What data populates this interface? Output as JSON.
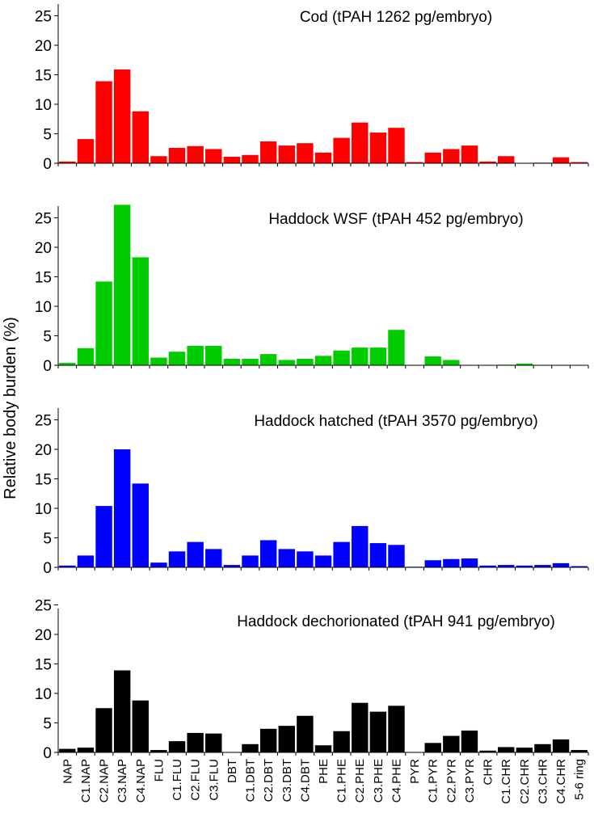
{
  "chart_data": {
    "type": "bar",
    "ylabel": "Relative body burden (%)",
    "ylim": [
      0,
      27
    ],
    "yticks": [
      "0",
      "5",
      "10",
      "15",
      "20",
      "25"
    ],
    "categories": [
      "NAP",
      "C1.NAP",
      "C2.NAP",
      "C3.NAP",
      "C4.NAP",
      "FLU",
      "C1.FLU",
      "C2.FLU",
      "C3.FLU",
      "DBT",
      "C1.DBT",
      "C2.DBT",
      "C3.DBT",
      "C4.DBT",
      "PHE",
      "C1.PHE",
      "C2.PHE",
      "C3.PHE",
      "C4.PHE",
      "PYR",
      "C1.PYR",
      "C2.PYR",
      "C3.PYR",
      "CHR",
      "C1.CHR",
      "C2.CHR",
      "C3.CHR",
      "C4.CHR",
      "5-6 ring"
    ],
    "panels": [
      {
        "title": "Cod (tPAH 1262 pg/embryo)",
        "color": "#ff0000",
        "values": [
          0.3,
          4.1,
          13.9,
          15.9,
          8.8,
          1.2,
          2.6,
          2.9,
          2.4,
          1.1,
          1.4,
          3.7,
          3.0,
          3.4,
          1.8,
          4.3,
          6.9,
          5.2,
          6.0,
          0.2,
          1.8,
          2.4,
          3.0,
          0.3,
          1.2,
          0.0,
          0.1,
          1.0,
          0.2
        ]
      },
      {
        "title": "Haddock WSF (tPAH 452 pg/embryo)",
        "color": "#00cc00",
        "values": [
          0.4,
          2.9,
          14.2,
          27.2,
          18.3,
          1.3,
          2.3,
          3.3,
          3.3,
          1.1,
          1.1,
          1.9,
          0.9,
          1.1,
          1.6,
          2.5,
          3.0,
          3.0,
          6.0,
          0.0,
          1.5,
          0.9,
          0.0,
          0.0,
          0.1,
          0.3,
          0.0,
          0.0,
          0.0
        ]
      },
      {
        "title": "Haddock hatched (tPAH 3570 pg/embryo)",
        "color": "#0000ff",
        "values": [
          0.3,
          2.0,
          10.4,
          20.0,
          14.2,
          0.8,
          2.7,
          4.3,
          3.1,
          0.4,
          2.0,
          4.6,
          3.1,
          2.7,
          2.0,
          4.3,
          7.0,
          4.1,
          3.8,
          0.1,
          1.2,
          1.4,
          1.5,
          0.3,
          0.4,
          0.3,
          0.4,
          0.7,
          0.2
        ]
      },
      {
        "title": "Haddock dechorionated (tPAH 941 pg/embryo)",
        "color": "#000000",
        "values": [
          0.6,
          0.8,
          7.5,
          13.9,
          8.8,
          0.4,
          1.9,
          3.3,
          3.2,
          0.0,
          1.4,
          4.0,
          4.5,
          6.2,
          1.2,
          3.6,
          8.4,
          6.9,
          7.9,
          0.0,
          1.6,
          2.8,
          3.7,
          0.3,
          0.9,
          0.8,
          1.4,
          2.2,
          0.4
        ]
      }
    ]
  }
}
